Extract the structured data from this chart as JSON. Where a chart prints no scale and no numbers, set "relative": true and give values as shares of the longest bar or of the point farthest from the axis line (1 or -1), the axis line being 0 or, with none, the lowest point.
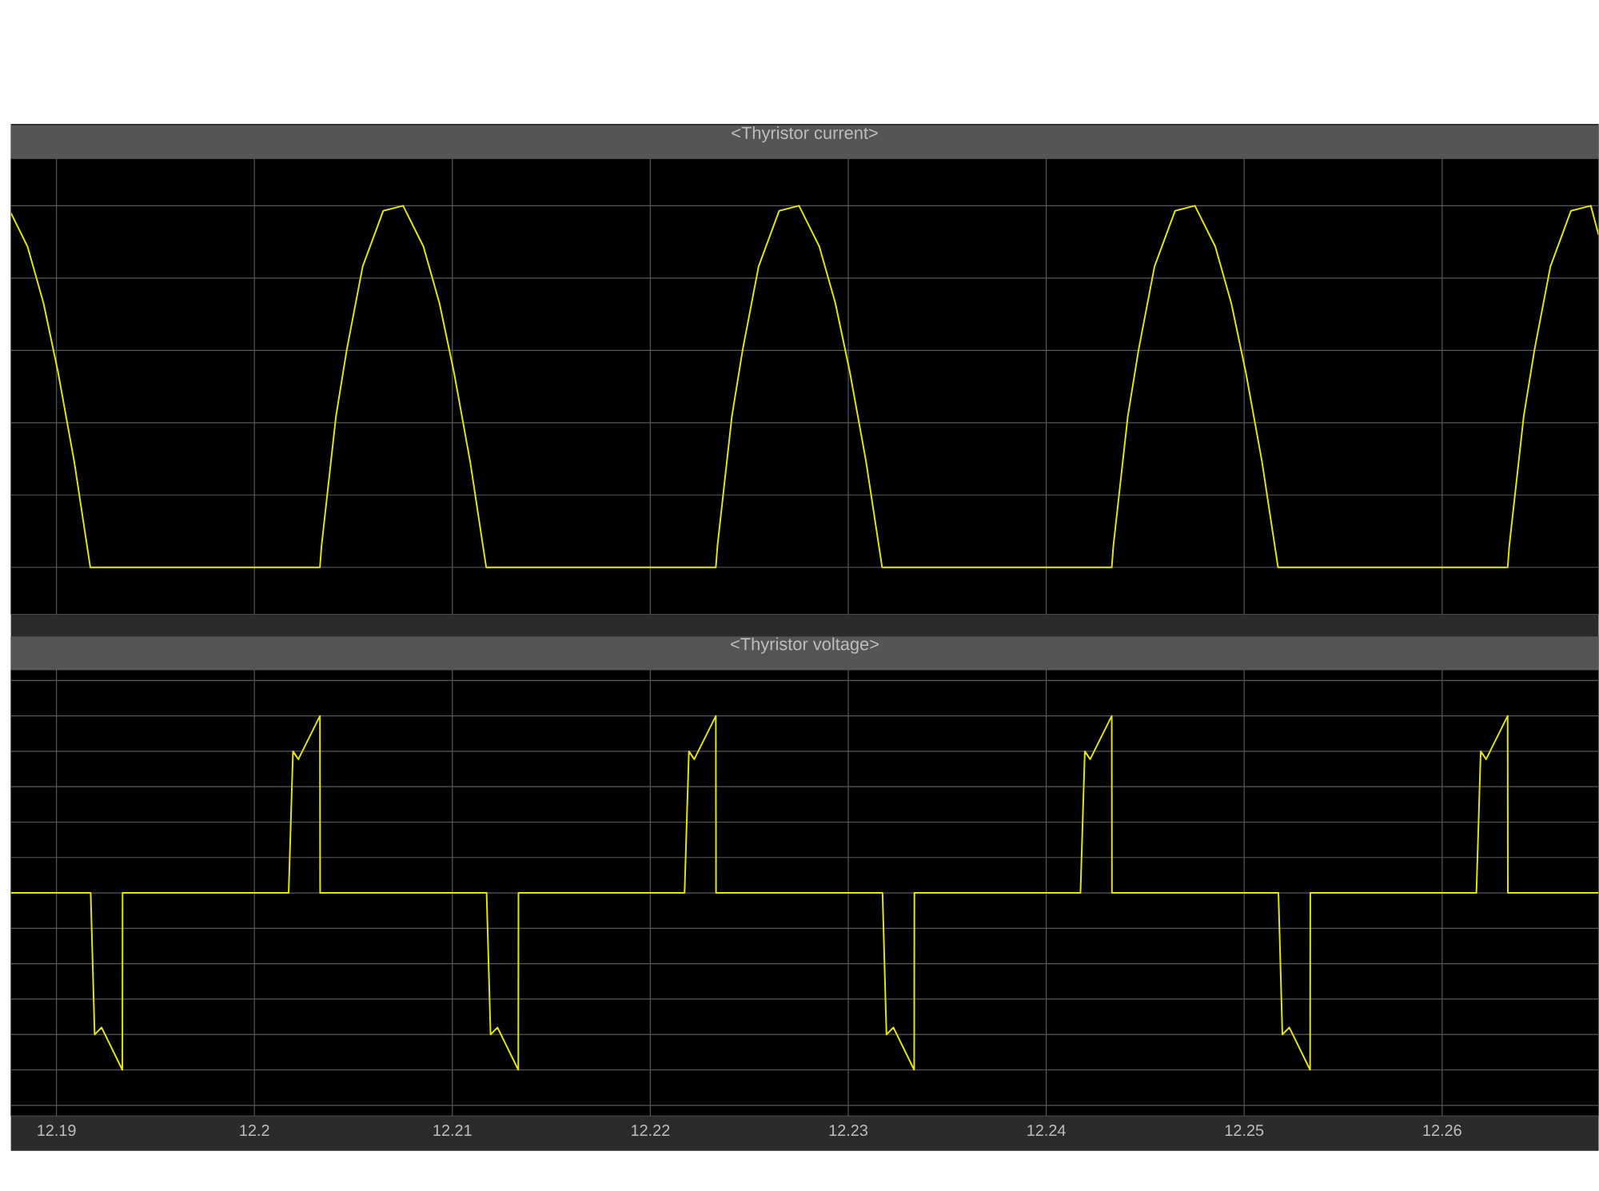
{
  "chart_data": [
    {
      "type": "line",
      "title": "<Thyristor current>",
      "relative": true,
      "color": "#e6e600",
      "grid": true,
      "tick_labels": false,
      "xlim": [
        12.1877,
        12.2679
      ],
      "xticks": [
        12.19,
        12.2,
        12.21,
        12.22,
        12.23,
        12.24,
        12.25,
        12.26
      ],
      "x": [
        12.1877,
        12.18854,
        12.18935,
        12.19008,
        12.1909,
        12.19171,
        12.20331,
        12.20339,
        12.20412,
        12.20466,
        12.20547,
        12.20651,
        12.20751,
        12.20854,
        12.20935,
        12.21008,
        12.2109,
        12.21171,
        12.22331,
        12.22339,
        12.22412,
        12.22466,
        12.22547,
        12.22651,
        12.22751,
        12.22854,
        12.22935,
        12.23008,
        12.2309,
        12.23171,
        12.24331,
        12.24339,
        12.24412,
        12.24466,
        12.24547,
        12.24651,
        12.24751,
        12.24854,
        12.24935,
        12.25008,
        12.2509,
        12.25171,
        12.26331,
        12.26339,
        12.26412,
        12.26466,
        12.26547,
        12.26651,
        12.26751,
        12.2679
      ],
      "values": [
        0.98,
        0.887,
        0.73,
        0.54,
        0.292,
        0,
        0,
        0.058,
        0.417,
        0.6,
        0.832,
        0.986,
        1,
        0.887,
        0.73,
        0.54,
        0.292,
        0,
        0,
        0.058,
        0.417,
        0.6,
        0.832,
        0.986,
        1,
        0.887,
        0.73,
        0.54,
        0.292,
        0,
        0,
        0.058,
        0.417,
        0.6,
        0.832,
        0.986,
        1,
        0.887,
        0.73,
        0.54,
        0.292,
        0,
        0,
        0.058,
        0.417,
        0.6,
        0.832,
        0.986,
        1,
        0.92
      ]
    },
    {
      "type": "line",
      "title": "<Thyristor voltage>",
      "relative": true,
      "color": "#e6e600",
      "grid": true,
      "tick_labels": "x",
      "xlim": [
        12.1877,
        12.2679
      ],
      "xticks": [
        12.19,
        12.2,
        12.21,
        12.22,
        12.23,
        12.24,
        12.25,
        12.26
      ],
      "x": [
        12.1877,
        12.19173,
        12.19193,
        12.19228,
        12.19333,
        12.19334,
        12.20173,
        12.20195,
        12.20222,
        12.20331,
        12.20332,
        12.21173,
        12.21193,
        12.21228,
        12.21333,
        12.21334,
        12.22173,
        12.22195,
        12.22222,
        12.22331,
        12.22332,
        12.23173,
        12.23193,
        12.23228,
        12.23333,
        12.23334,
        12.24173,
        12.24195,
        12.24222,
        12.24331,
        12.24332,
        12.25173,
        12.25193,
        12.25228,
        12.25333,
        12.25334,
        12.26173,
        12.26195,
        12.26222,
        12.26331,
        12.26332,
        12.2679
      ],
      "values": [
        0,
        0,
        -0.8,
        -0.76,
        -1,
        0,
        0,
        0.8,
        0.755,
        1,
        0,
        0,
        -0.8,
        -0.76,
        -1,
        0,
        0,
        0.8,
        0.755,
        1,
        0,
        0,
        -0.8,
        -0.76,
        -1,
        0,
        0,
        0.8,
        0.755,
        1,
        0,
        0,
        -0.8,
        -0.76,
        -1,
        0,
        0,
        0.8,
        0.755,
        1,
        0,
        0
      ]
    }
  ]
}
